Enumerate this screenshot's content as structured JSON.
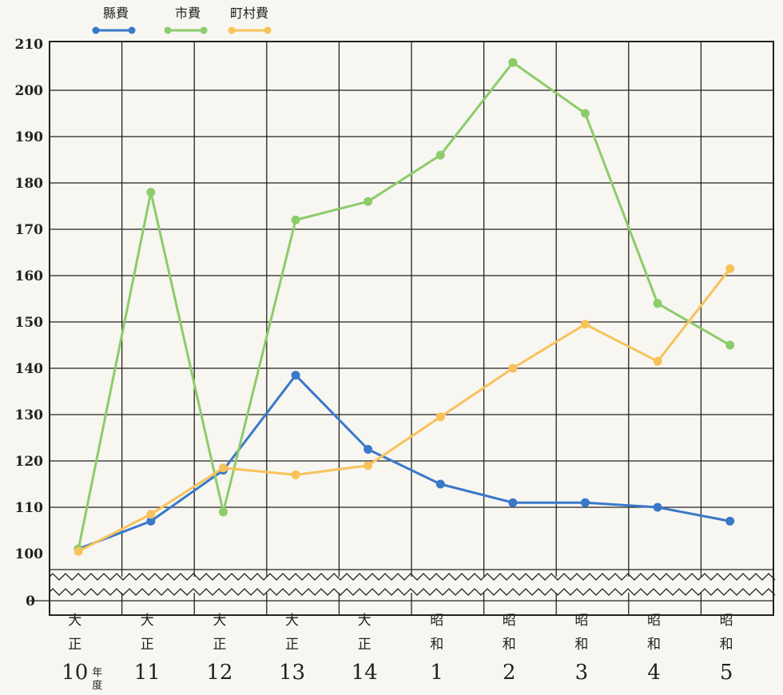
{
  "chart_data": {
    "type": "line",
    "y_ticks": [
      "210",
      "200",
      "190",
      "180",
      "170",
      "160",
      "150",
      "140",
      "130",
      "120",
      "110",
      "100",
      "0"
    ],
    "ylim": [
      100,
      210
    ],
    "categories": [
      {
        "era": [
          "大",
          "正"
        ],
        "num": "10",
        "suffix": [
          "年",
          "度"
        ]
      },
      {
        "era": [
          "大",
          "正"
        ],
        "num": "11"
      },
      {
        "era": [
          "大",
          "正"
        ],
        "num": "12"
      },
      {
        "era": [
          "大",
          "正"
        ],
        "num": "13"
      },
      {
        "era": [
          "大",
          "正"
        ],
        "num": "14"
      },
      {
        "era": [
          "昭",
          "和"
        ],
        "num": "1"
      },
      {
        "era": [
          "昭",
          "和"
        ],
        "num": "2"
      },
      {
        "era": [
          "昭",
          "和"
        ],
        "num": "3"
      },
      {
        "era": [
          "昭",
          "和"
        ],
        "num": "4"
      },
      {
        "era": [
          "昭",
          "和"
        ],
        "num": "5"
      }
    ],
    "series": [
      {
        "name": "縣費",
        "color": "#3a78c9",
        "values": [
          101,
          107,
          118,
          138.5,
          122.5,
          115,
          111,
          111,
          110,
          107
        ]
      },
      {
        "name": "市費",
        "color": "#8ccc6a",
        "values": [
          101,
          178,
          109,
          172,
          176,
          186,
          206,
          195,
          154,
          145
        ]
      },
      {
        "name": "町村費",
        "color": "#f8c25a",
        "values": [
          100.5,
          108.5,
          118.5,
          117,
          119,
          129.5,
          140,
          149.5,
          141.5,
          161.5
        ]
      }
    ],
    "grid": true,
    "axis_break": true,
    "legend_position": "top-left"
  }
}
